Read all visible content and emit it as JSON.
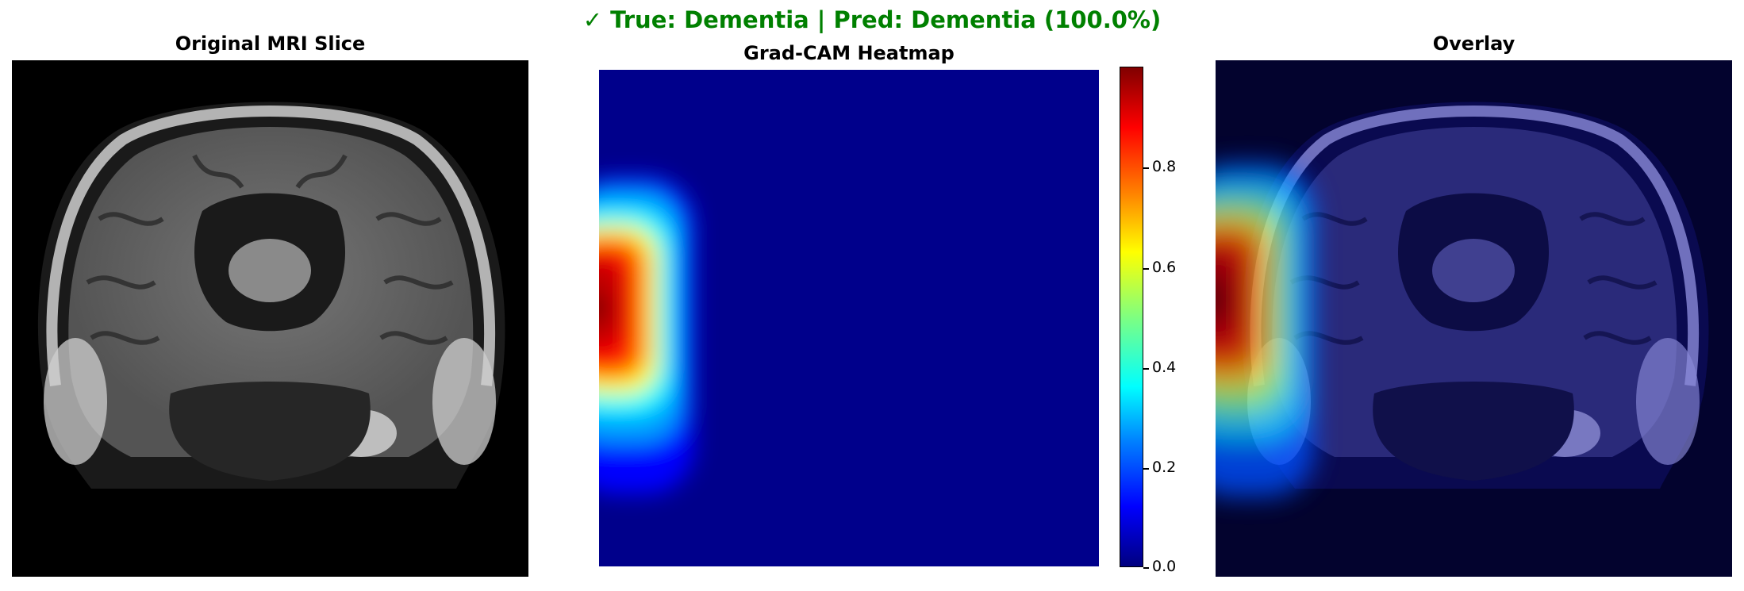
{
  "figure": {
    "suptitle": "✓ True: Dementia | Pred: Dementia (100.0%)",
    "suptitle_color": "#008000"
  },
  "panels": [
    {
      "title": "Original MRI Slice"
    },
    {
      "title": "Grad-CAM Heatmap"
    },
    {
      "title": "Overlay"
    }
  ],
  "colorbar": {
    "colormap": "jet",
    "range": [
      0.0,
      1.0
    ],
    "ticks": [
      "0.0",
      "0.2",
      "0.4",
      "0.6",
      "0.8"
    ]
  }
}
